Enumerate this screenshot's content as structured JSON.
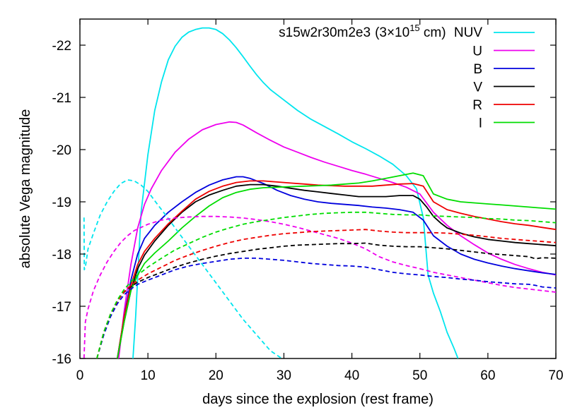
{
  "chart_data": {
    "type": "line",
    "title": "",
    "xlabel": "days since the explosion (rest frame)",
    "ylabel": "absolute Vega magnitude",
    "xlim": [
      0,
      70
    ],
    "ylim": [
      -16,
      -22.5
    ],
    "y_inverted": true,
    "grid": false,
    "legend_placement": "top-right",
    "legend_title": {
      "model": "s15w2r30m2e3",
      "radius_prefix": "(3×10",
      "radius_exp": "15",
      "radius_suffix": " cm)"
    },
    "xticks": [
      "0",
      "10",
      "20",
      "30",
      "40",
      "50",
      "60",
      "70"
    ],
    "yticks": [
      "-16",
      "-17",
      "-18",
      "-19",
      "-20",
      "-21",
      "-22"
    ],
    "series": [
      {
        "name": "NUV",
        "color": "#00e5ee",
        "style": "solid",
        "x": [
          7.8,
          8.2,
          9,
          10,
          11,
          12,
          13,
          14,
          15,
          16,
          17,
          18,
          19,
          20,
          21,
          22,
          23,
          24,
          25,
          26,
          27,
          28,
          30,
          32,
          34,
          36,
          38,
          40,
          42,
          44,
          46,
          48,
          49.5,
          50.5,
          51.2,
          52,
          53,
          54,
          55,
          55.6
        ],
        "y": [
          -16.0,
          -16.8,
          -18.8,
          -19.9,
          -20.75,
          -21.3,
          -21.72,
          -21.98,
          -22.15,
          -22.25,
          -22.3,
          -22.33,
          -22.33,
          -22.3,
          -22.22,
          -22.1,
          -21.95,
          -21.78,
          -21.6,
          -21.43,
          -21.28,
          -21.15,
          -20.95,
          -20.75,
          -20.58,
          -20.44,
          -20.3,
          -20.15,
          -20.02,
          -19.88,
          -19.72,
          -19.5,
          -19.25,
          -18.7,
          -17.6,
          -17.25,
          -16.9,
          -16.5,
          -16.2,
          -16.0
        ]
      },
      {
        "name": "U",
        "color": "#ee00ee",
        "style": "solid",
        "x": [
          5.7,
          6.5,
          7.5,
          8.5,
          9.5,
          10.5,
          12,
          14,
          16,
          18,
          20,
          22,
          23,
          24,
          26,
          28,
          30,
          32,
          34,
          36,
          38,
          40,
          42,
          44,
          46,
          48,
          50,
          52,
          54,
          56,
          58,
          60,
          62,
          64,
          66,
          68,
          70
        ],
        "y": [
          -16.0,
          -16.9,
          -17.8,
          -18.5,
          -18.95,
          -19.25,
          -19.6,
          -19.95,
          -20.2,
          -20.38,
          -20.48,
          -20.53,
          -20.52,
          -20.47,
          -20.32,
          -20.18,
          -20.05,
          -19.95,
          -19.85,
          -19.76,
          -19.68,
          -19.6,
          -19.53,
          -19.45,
          -19.37,
          -19.28,
          -19.15,
          -18.8,
          -18.55,
          -18.35,
          -18.18,
          -18.02,
          -17.9,
          -17.8,
          -17.72,
          -17.65,
          -17.6
        ]
      },
      {
        "name": "B",
        "color": "#0000dd",
        "style": "solid",
        "x": [
          5.5,
          6.5,
          7.5,
          8.5,
          9.5,
          11,
          13,
          15,
          17,
          19,
          21,
          23,
          24,
          25,
          27,
          29,
          31,
          33,
          35,
          37,
          39,
          41,
          43,
          45,
          47,
          49,
          50.5,
          52,
          54,
          56,
          58,
          60,
          62,
          64,
          66,
          68,
          70
        ],
        "y": [
          -16.0,
          -16.8,
          -17.5,
          -18.0,
          -18.3,
          -18.55,
          -18.8,
          -19.0,
          -19.18,
          -19.32,
          -19.42,
          -19.48,
          -19.48,
          -19.45,
          -19.35,
          -19.22,
          -19.12,
          -19.05,
          -19.0,
          -18.97,
          -18.95,
          -18.93,
          -18.9,
          -18.88,
          -18.85,
          -18.8,
          -18.65,
          -18.35,
          -18.15,
          -18.0,
          -17.9,
          -17.83,
          -17.77,
          -17.72,
          -17.68,
          -17.64,
          -17.61
        ]
      },
      {
        "name": "V",
        "color": "#000000",
        "style": "solid",
        "x": [
          5.5,
          6.5,
          7.5,
          8.5,
          9.5,
          11,
          13,
          15,
          17,
          19,
          21,
          23,
          25,
          27,
          29,
          31,
          33,
          35,
          37,
          39,
          41,
          43,
          45,
          47,
          49,
          50,
          51,
          52,
          53,
          54,
          56,
          58,
          60,
          62,
          64,
          66,
          68,
          70
        ],
        "y": [
          -16.0,
          -16.7,
          -17.3,
          -17.72,
          -17.98,
          -18.25,
          -18.55,
          -18.8,
          -19.0,
          -19.13,
          -19.22,
          -19.3,
          -19.33,
          -19.33,
          -19.3,
          -19.26,
          -19.22,
          -19.19,
          -19.16,
          -19.13,
          -19.1,
          -19.1,
          -19.1,
          -19.12,
          -19.12,
          -19.05,
          -18.9,
          -18.72,
          -18.6,
          -18.5,
          -18.4,
          -18.33,
          -18.28,
          -18.25,
          -18.22,
          -18.2,
          -18.18,
          -18.16
        ]
      },
      {
        "name": "R",
        "color": "#ee0000",
        "style": "solid",
        "x": [
          5.5,
          6.5,
          7.5,
          8.5,
          9.5,
          11,
          13,
          15,
          17,
          19,
          21,
          23,
          25,
          27,
          29,
          31,
          33,
          35,
          37,
          39,
          41,
          43,
          45,
          47,
          49,
          50.5,
          52,
          54,
          56,
          58,
          60,
          62,
          64,
          66,
          68,
          70
        ],
        "y": [
          -16.0,
          -16.8,
          -17.4,
          -17.8,
          -18.05,
          -18.3,
          -18.58,
          -18.82,
          -19.05,
          -19.2,
          -19.3,
          -19.37,
          -19.4,
          -19.4,
          -19.38,
          -19.36,
          -19.34,
          -19.32,
          -19.31,
          -19.3,
          -19.3,
          -19.3,
          -19.32,
          -19.34,
          -19.35,
          -19.3,
          -19.0,
          -18.85,
          -18.78,
          -18.72,
          -18.67,
          -18.62,
          -18.58,
          -18.55,
          -18.51,
          -18.47
        ]
      },
      {
        "name": "I",
        "color": "#00dd00",
        "style": "solid",
        "x": [
          5.5,
          6.5,
          7.5,
          8.5,
          9.5,
          11,
          13,
          15,
          17,
          19,
          21,
          23,
          25,
          27,
          29,
          31,
          33,
          35,
          37,
          39,
          41,
          43,
          45,
          47,
          49,
          50.5,
          52,
          54,
          56,
          58,
          60,
          62,
          64,
          66,
          68,
          70
        ],
        "y": [
          -16.0,
          -16.7,
          -17.3,
          -17.6,
          -17.82,
          -18.02,
          -18.25,
          -18.5,
          -18.72,
          -18.92,
          -19.08,
          -19.18,
          -19.24,
          -19.27,
          -19.28,
          -19.29,
          -19.3,
          -19.31,
          -19.32,
          -19.34,
          -19.36,
          -19.4,
          -19.45,
          -19.5,
          -19.55,
          -19.5,
          -19.15,
          -19.05,
          -19.0,
          -18.98,
          -18.96,
          -18.94,
          -18.92,
          -18.9,
          -18.88,
          -18.86
        ]
      },
      {
        "name": "",
        "color": "#00e5ee",
        "style": "dashed",
        "x": [
          0.6,
          0.65,
          0.8,
          1.2,
          2,
          3,
          4,
          5,
          6,
          7,
          8,
          9,
          10,
          11,
          12,
          13,
          14,
          16,
          18,
          20,
          22,
          24,
          26,
          28,
          29.7
        ],
        "y": [
          -18.7,
          -17.7,
          -17.75,
          -18.1,
          -18.4,
          -18.75,
          -19.0,
          -19.2,
          -19.35,
          -19.42,
          -19.4,
          -19.32,
          -19.2,
          -19.02,
          -18.85,
          -18.68,
          -18.5,
          -18.15,
          -17.8,
          -17.45,
          -17.1,
          -16.75,
          -16.45,
          -16.15,
          -16.0
        ]
      },
      {
        "name": "",
        "color": "#ee00ee",
        "style": "dashed",
        "x": [
          0.6,
          0.8,
          1.2,
          2,
          3,
          4,
          5,
          6,
          7,
          8,
          10,
          12,
          14,
          16,
          18,
          20,
          22,
          24,
          26,
          28,
          30,
          32,
          34,
          36,
          38,
          40,
          42,
          44,
          46,
          48,
          50,
          52,
          54,
          56,
          58,
          60,
          62,
          64,
          66,
          68,
          70
        ],
        "y": [
          -16.0,
          -16.7,
          -16.95,
          -17.3,
          -17.6,
          -17.85,
          -18.05,
          -18.22,
          -18.35,
          -18.45,
          -18.57,
          -18.65,
          -18.69,
          -18.71,
          -18.72,
          -18.72,
          -18.71,
          -18.69,
          -18.66,
          -18.62,
          -18.57,
          -18.51,
          -18.44,
          -18.37,
          -18.3,
          -18.21,
          -18.1,
          -17.95,
          -17.85,
          -17.78,
          -17.72,
          -17.65,
          -17.6,
          -17.55,
          -17.5,
          -17.45,
          -17.4,
          -17.36,
          -17.33,
          -17.3,
          -17.27
        ]
      },
      {
        "name": "",
        "color": "#0000dd",
        "style": "dashed",
        "x": [
          2.5,
          3.5,
          4.5,
          5.5,
          6.5,
          7.5,
          8.5,
          10,
          12,
          14,
          16,
          18,
          20,
          22,
          24,
          26,
          28,
          30,
          32,
          34,
          36,
          38,
          40,
          42,
          44,
          46,
          48,
          50,
          52,
          54,
          56,
          58,
          60,
          62,
          64,
          66,
          67,
          68,
          70
        ],
        "y": [
          -16.0,
          -16.45,
          -16.8,
          -17.05,
          -17.22,
          -17.33,
          -17.42,
          -17.5,
          -17.6,
          -17.7,
          -17.77,
          -17.82,
          -17.86,
          -17.9,
          -17.92,
          -17.92,
          -17.9,
          -17.88,
          -17.85,
          -17.82,
          -17.8,
          -17.78,
          -17.77,
          -17.75,
          -17.7,
          -17.65,
          -17.62,
          -17.6,
          -17.57,
          -17.55,
          -17.52,
          -17.5,
          -17.47,
          -17.45,
          -17.43,
          -17.42,
          -17.4,
          -17.37,
          -17.35
        ]
      },
      {
        "name": "",
        "color": "#000000",
        "style": "dashed",
        "x": [
          2.5,
          3.5,
          4.5,
          5.5,
          6.5,
          7.5,
          8.5,
          10,
          12,
          14,
          16,
          18,
          20,
          22,
          24,
          26,
          28,
          30,
          32,
          34,
          36,
          38,
          40,
          42,
          44,
          46,
          48,
          50,
          52,
          54,
          56,
          58,
          60,
          62,
          64,
          66,
          67,
          68,
          70
        ],
        "y": [
          -16.0,
          -16.5,
          -16.85,
          -17.1,
          -17.27,
          -17.38,
          -17.46,
          -17.55,
          -17.65,
          -17.75,
          -17.83,
          -17.9,
          -17.96,
          -18.01,
          -18.05,
          -18.09,
          -18.12,
          -18.15,
          -18.17,
          -18.18,
          -18.19,
          -18.2,
          -18.2,
          -18.21,
          -18.17,
          -18.15,
          -18.14,
          -18.14,
          -18.12,
          -18.1,
          -18.07,
          -18.04,
          -18.01,
          -17.99,
          -17.97,
          -17.95,
          -17.91,
          -17.93,
          -17.92
        ]
      },
      {
        "name": "",
        "color": "#ee0000",
        "style": "dashed",
        "x": [
          2.5,
          3.5,
          4.5,
          5.5,
          6.5,
          7.5,
          8.5,
          10,
          12,
          14,
          16,
          18,
          20,
          22,
          24,
          26,
          28,
          30,
          32,
          34,
          36,
          38,
          40,
          42,
          44,
          46,
          48,
          50,
          52,
          54,
          56,
          58,
          60,
          62,
          64,
          66,
          68,
          70
        ],
        "y": [
          -16.0,
          -16.5,
          -16.85,
          -17.1,
          -17.28,
          -17.4,
          -17.5,
          -17.62,
          -17.75,
          -17.88,
          -17.98,
          -18.07,
          -18.15,
          -18.22,
          -18.28,
          -18.32,
          -18.36,
          -18.39,
          -18.41,
          -18.43,
          -18.44,
          -18.45,
          -18.46,
          -18.47,
          -18.44,
          -18.42,
          -18.41,
          -18.41,
          -18.41,
          -18.4,
          -18.38,
          -18.36,
          -18.33,
          -18.3,
          -18.28,
          -18.26,
          -18.24,
          -18.22
        ]
      },
      {
        "name": "",
        "color": "#00dd00",
        "style": "dashed",
        "x": [
          2.5,
          3.5,
          4.5,
          5.5,
          6.5,
          7.5,
          8.5,
          10,
          12,
          14,
          16,
          18,
          20,
          22,
          24,
          26,
          28,
          30,
          32,
          34,
          36,
          38,
          40,
          42,
          44,
          46,
          48,
          50,
          52,
          54,
          56,
          58,
          60,
          62,
          64,
          66,
          68,
          70
        ],
        "y": [
          -16.0,
          -16.5,
          -16.85,
          -17.12,
          -17.32,
          -17.47,
          -17.6,
          -17.75,
          -17.92,
          -18.08,
          -18.2,
          -18.32,
          -18.42,
          -18.5,
          -18.57,
          -18.62,
          -18.66,
          -18.7,
          -18.73,
          -18.76,
          -18.78,
          -18.79,
          -18.8,
          -18.8,
          -18.78,
          -18.76,
          -18.75,
          -18.75,
          -18.73,
          -18.72,
          -18.71,
          -18.7,
          -18.68,
          -18.67,
          -18.65,
          -18.64,
          -18.62,
          -18.6
        ]
      }
    ]
  }
}
